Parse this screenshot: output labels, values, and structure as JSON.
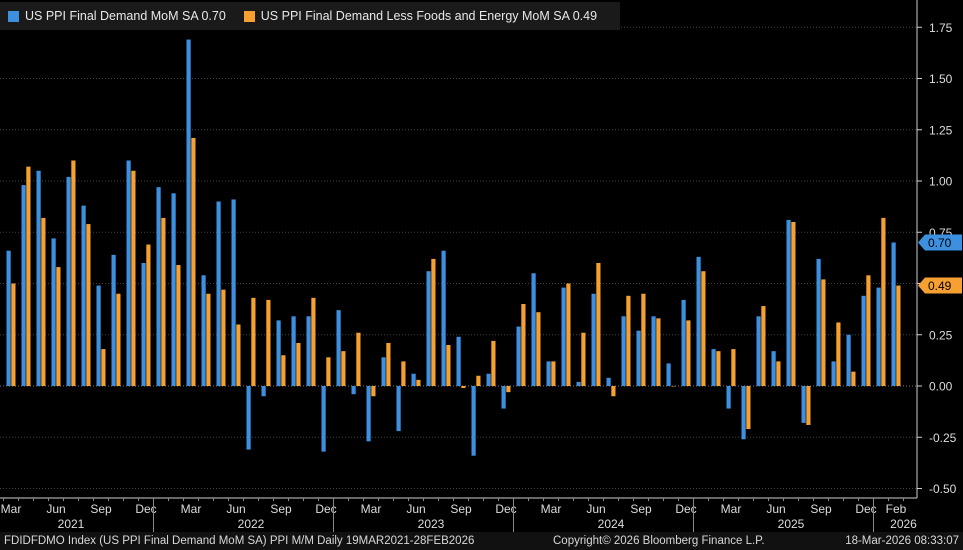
{
  "chart_data": {
    "type": "bar",
    "legend": [
      {
        "label": "US PPI Final Demand MoM SA 0.70",
        "color": "#3d8fe0"
      },
      {
        "label": "US PPI Final Demand Less Foods and Energy MoM SA 0.49",
        "color": "#f5a031"
      }
    ],
    "ylim": [
      -0.55,
      1.9
    ],
    "yticks": [
      "1.75",
      "1.50",
      "1.25",
      "1.00",
      "0.75",
      "0.50",
      "0.25",
      "0.00",
      "-0.25",
      "-0.50"
    ],
    "ytick_values": [
      1.75,
      1.5,
      1.25,
      1.0,
      0.75,
      0.5,
      0.25,
      0.0,
      -0.25,
      -0.5
    ],
    "last_labels": [
      {
        "text": "0.70",
        "value": 0.7,
        "color": "#3d8fe0"
      },
      {
        "text": "0.49",
        "value": 0.49,
        "color": "#f5a031"
      }
    ],
    "month_labels": [
      "Mar",
      "Jun",
      "Sep",
      "Dec",
      "Mar",
      "Jun",
      "Sep",
      "Dec",
      "Mar",
      "Jun",
      "Sep",
      "Dec",
      "Mar",
      "Jun",
      "Sep",
      "Dec",
      "Mar",
      "Jun",
      "Sep",
      "Dec",
      "Feb"
    ],
    "month_label_index": [
      0,
      3,
      6,
      9,
      12,
      15,
      18,
      21,
      24,
      27,
      30,
      33,
      36,
      39,
      42,
      45,
      48,
      51,
      54,
      57,
      59
    ],
    "year_labels": [
      "2021",
      "2022",
      "2023",
      "2024",
      "2025",
      "2026"
    ],
    "year_label_index": [
      4,
      16,
      28,
      40,
      52,
      59.5
    ],
    "year_separator_index": [
      9.5,
      21.5,
      33.5,
      45.5,
      57.5
    ],
    "series": [
      {
        "name": "US PPI Final Demand MoM SA",
        "values": [
          0.66,
          0.98,
          1.05,
          0.72,
          1.02,
          0.88,
          0.49,
          0.64,
          1.1,
          0.6,
          0.97,
          0.94,
          1.69,
          0.54,
          0.9,
          0.91,
          -0.31,
          -0.05,
          0.32,
          0.34,
          0.34,
          -0.32,
          0.37,
          -0.04,
          -0.27,
          0.14,
          -0.22,
          0.06,
          0.56,
          0.66,
          0.24,
          -0.34,
          0.06,
          -0.11,
          0.29,
          0.55,
          0.12,
          0.48,
          0.02,
          0.45,
          0.04,
          0.34,
          0.27,
          0.34,
          0.11,
          0.42,
          0.63,
          0.18,
          -0.11,
          -0.26,
          0.34,
          0.17,
          0.81,
          -0.18,
          0.62,
          0.12,
          0.25,
          0.44,
          0.48,
          0.7
        ]
      },
      {
        "name": "US PPI Final Demand Less Foods and Energy MoM SA",
        "values": [
          0.5,
          1.07,
          0.82,
          0.58,
          1.1,
          0.79,
          0.18,
          0.45,
          1.05,
          0.69,
          0.82,
          0.59,
          1.21,
          0.45,
          0.47,
          0.3,
          0.43,
          0.42,
          0.15,
          0.21,
          0.43,
          0.14,
          0.17,
          0.26,
          -0.05,
          0.21,
          0.12,
          0.03,
          0.62,
          0.2,
          -0.01,
          0.05,
          0.22,
          -0.03,
          0.4,
          0.36,
          0.12,
          0.5,
          0.26,
          0.6,
          -0.05,
          0.44,
          0.45,
          0.33,
          0.0,
          0.32,
          0.56,
          0.17,
          0.18,
          -0.21,
          0.39,
          0.12,
          0.8,
          -0.19,
          0.52,
          0.31,
          0.07,
          0.54,
          0.82,
          0.49
        ]
      }
    ]
  },
  "footer": {
    "source": "FDIDFDMO Index (US PPI Final Demand MoM SA) PPI M/M Daily 19MAR2021-28FEB2026",
    "copyright": "Copyright© 2026 Bloomberg Finance L.P.",
    "date": "18-Mar-2026 08:33:07"
  }
}
